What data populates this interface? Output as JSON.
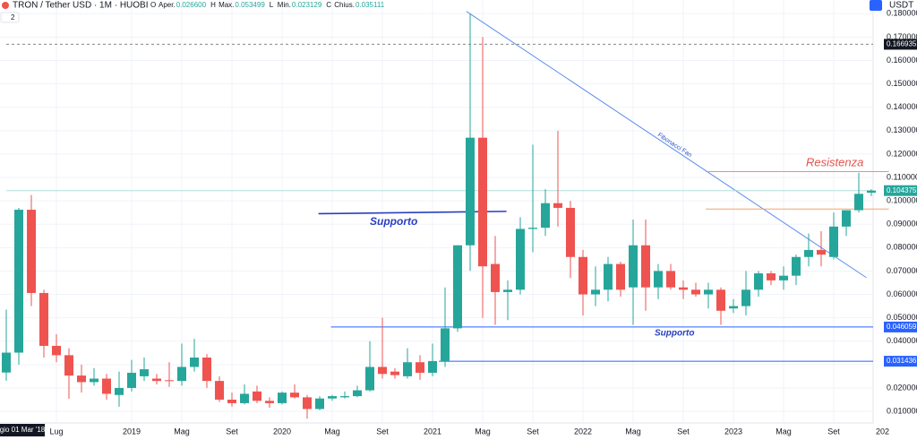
{
  "chart_data": {
    "type": "candlestick",
    "title": "TRON / Tether USD · 1M · HUOBI",
    "legend": [
      {
        "key": "O",
        "name": "Aper.",
        "value": "0.026600"
      },
      {
        "key": "H",
        "name": "Max.",
        "value": "0.053499"
      },
      {
        "key": "L",
        "name": "Min.",
        "value": "0.023129"
      },
      {
        "key": "C",
        "name": "Chius.",
        "value": "0.035111"
      }
    ],
    "indicator_count": "2",
    "currency": "USDT",
    "crosshair_label": "gio 01 Mar '18",
    "axis_end_label": "202",
    "up_color": "#26a69a",
    "down_color": "#ef5350",
    "categories": [
      null,
      null,
      null,
      null,
      "Lug",
      null,
      null,
      null,
      null,
      null,
      "2019",
      null,
      null,
      null,
      "Mag",
      null,
      null,
      null,
      "Set",
      null,
      null,
      null,
      "2020",
      null,
      null,
      null,
      "Mag",
      null,
      null,
      null,
      "Set",
      null,
      null,
      null,
      "2021",
      null,
      null,
      null,
      "Mag",
      null,
      null,
      null,
      "Set",
      null,
      null,
      null,
      "2022",
      null,
      null,
      null,
      "Mag",
      null,
      null,
      null,
      "Set",
      null,
      null,
      null,
      "2023",
      null,
      null,
      null,
      "Mag",
      null,
      null,
      null,
      "Set",
      null,
      null,
      null
    ],
    "open": [
      0.0266,
      0.0351,
      0.0962,
      0.0606,
      0.038,
      0.034,
      0.0253,
      0.0225,
      0.024,
      0.017,
      0.02,
      0.025,
      0.024,
      0.0233,
      0.023,
      0.029,
      0.033,
      0.023,
      0.015,
      0.0135,
      0.0185,
      0.0145,
      0.0135,
      0.018,
      0.016,
      0.011,
      0.0155,
      0.016,
      0.0165,
      0.019,
      0.029,
      0.027,
      0.025,
      0.031,
      0.0265,
      0.0315,
      0.0455,
      0.081,
      0.127,
      0.073,
      0.061,
      0.062,
      0.088,
      0.0885,
      0.099,
      0.097,
      0.076,
      0.06,
      0.062,
      0.073,
      0.063,
      0.081,
      0.063,
      0.07,
      0.063,
      0.062,
      0.06,
      0.062,
      0.054,
      0.055,
      0.062,
      0.069,
      0.066,
      0.068,
      0.076,
      0.079,
      0.076,
      0.089,
      0.096,
      0.1035
    ],
    "high": [
      0.0535,
      0.097,
      0.1025,
      0.062,
      0.043,
      0.037,
      0.03,
      0.0285,
      0.026,
      0.027,
      0.032,
      0.033,
      0.026,
      0.031,
      0.039,
      0.041,
      0.0345,
      0.025,
      0.018,
      0.0215,
      0.021,
      0.016,
      0.0185,
      0.0215,
      0.017,
      0.0165,
      0.017,
      0.0185,
      0.021,
      0.04,
      0.05,
      0.0285,
      0.037,
      0.034,
      0.039,
      0.063,
      0.081,
      0.18,
      0.17,
      0.085,
      0.066,
      0.093,
      0.124,
      0.105,
      0.13,
      0.1,
      0.079,
      0.072,
      0.076,
      0.074,
      0.092,
      0.092,
      0.073,
      0.073,
      0.066,
      0.065,
      0.065,
      0.063,
      0.058,
      0.07,
      0.07,
      0.07,
      0.072,
      0.077,
      0.086,
      0.087,
      0.095,
      0.096,
      0.112,
      0.105
    ],
    "low": [
      0.0231,
      0.03,
      0.055,
      0.033,
      0.031,
      0.0154,
      0.018,
      0.021,
      0.015,
      0.012,
      0.0185,
      0.023,
      0.0215,
      0.0205,
      0.021,
      0.027,
      0.02,
      0.014,
      0.012,
      0.013,
      0.0135,
      0.0115,
      0.013,
      0.0155,
      0.0069,
      0.0105,
      0.0145,
      0.0155,
      0.016,
      0.0185,
      0.024,
      0.024,
      0.024,
      0.0235,
      0.025,
      0.029,
      0.044,
      0.07,
      0.05,
      0.047,
      0.049,
      0.06,
      0.078,
      0.085,
      0.089,
      0.067,
      0.051,
      0.055,
      0.057,
      0.059,
      0.047,
      0.053,
      0.058,
      0.062,
      0.058,
      0.059,
      0.054,
      0.047,
      0.052,
      0.051,
      0.059,
      0.064,
      0.062,
      0.064,
      0.072,
      0.072,
      0.075,
      0.085,
      0.095,
      0.102
    ],
    "close": [
      0.0351,
      0.0962,
      0.0606,
      0.038,
      0.034,
      0.0253,
      0.0225,
      0.024,
      0.0175,
      0.02,
      0.0265,
      0.028,
      0.023,
      0.023,
      0.029,
      0.033,
      0.023,
      0.015,
      0.0135,
      0.0175,
      0.0145,
      0.0135,
      0.018,
      0.016,
      0.011,
      0.0155,
      0.0165,
      0.0165,
      0.019,
      0.029,
      0.026,
      0.0255,
      0.031,
      0.0265,
      0.0315,
      0.0455,
      0.081,
      0.127,
      0.072,
      0.061,
      0.062,
      0.088,
      0.0885,
      0.099,
      0.097,
      0.076,
      0.06,
      0.062,
      0.073,
      0.062,
      0.081,
      0.063,
      0.07,
      0.063,
      0.062,
      0.06,
      0.062,
      0.053,
      0.055,
      0.062,
      0.069,
      0.066,
      0.068,
      0.076,
      0.079,
      0.077,
      0.089,
      0.096,
      0.103,
      0.1044
    ],
    "ylim": [
      0.0058,
      0.1828
    ],
    "yticks": [
      {
        "value": 0.01,
        "label": "0.010000"
      },
      {
        "value": 0.02,
        "label": "0.020000"
      },
      {
        "value": 0.03,
        "label": "0.030000"
      },
      {
        "value": 0.04,
        "label": "0.040000"
      },
      {
        "value": 0.05,
        "label": "0.050000"
      },
      {
        "value": 0.06,
        "label": "0.060000"
      },
      {
        "value": 0.07,
        "label": "0.070000"
      },
      {
        "value": 0.08,
        "label": "0.080000"
      },
      {
        "value": 0.09,
        "label": "0.090000"
      },
      {
        "value": 0.1,
        "label": "0.100000"
      },
      {
        "value": 0.11,
        "label": "0.110000"
      },
      {
        "value": 0.12,
        "label": "0.120000"
      },
      {
        "value": 0.13,
        "label": "0.130000"
      },
      {
        "value": 0.14,
        "label": "0.140000"
      },
      {
        "value": 0.15,
        "label": "0.150000"
      },
      {
        "value": 0.16,
        "label": "0.160000"
      },
      {
        "value": 0.17,
        "label": "0.170000"
      },
      {
        "value": 0.18,
        "label": "0.180000"
      }
    ],
    "levels": [
      {
        "value": 0.166935,
        "from": 0,
        "color": "#888888",
        "bg": "#131722",
        "dash": true
      },
      {
        "value": 0.104375,
        "from": 0,
        "color": "#b2dfdb",
        "bg": "#26a69a",
        "dash": false
      },
      {
        "value": 0.046059,
        "from": 25.9,
        "color": "#2962ff",
        "bg": "#2962ff",
        "dash": false
      },
      {
        "value": 0.031436,
        "from": 34.5,
        "color": "#2962ff",
        "bg": "#2962ff",
        "dash": false
      }
    ],
    "drawings": [
      {
        "x": [
          24.9,
          39.9
        ],
        "y": [
          0.0945,
          0.0955
        ],
        "color": "#2a3fbf"
      },
      {
        "x": [
          36.7,
          68.6
        ],
        "y": [
          0.181,
          0.0672
        ],
        "color": "#5b8def"
      },
      {
        "x": [
          55.8,
          70.4
        ],
        "y": [
          0.1125,
          0.1125
        ],
        "color": "#f28b82"
      },
      {
        "x": [
          55.8,
          70.4
        ],
        "y": [
          0.0965,
          0.0965
        ],
        "color": "#f5a36a"
      }
    ],
    "annotations": [
      "Supporto",
      "Supporto",
      "Resistenza",
      "Fibonacci Fan"
    ]
  }
}
